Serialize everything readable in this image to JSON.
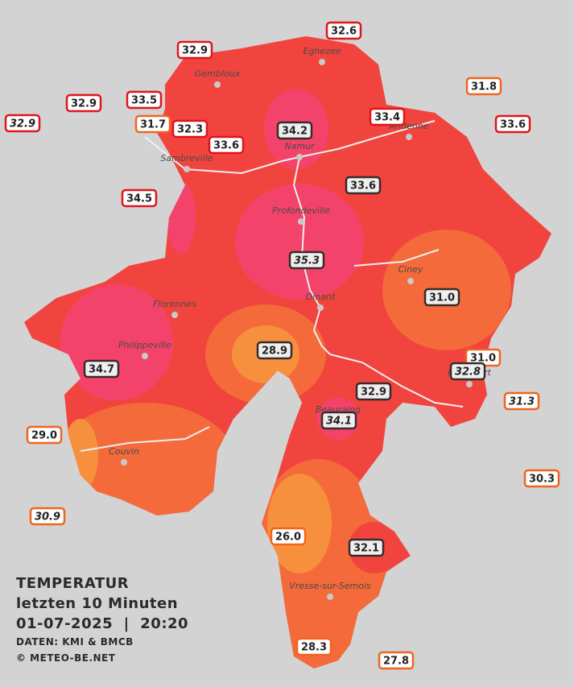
{
  "title": {
    "lines": [
      "TEMPERATUR",
      "letzten 10 Minuten",
      "01-07-2025  |  20:20"
    ],
    "source": "DATEN: KMI & BMCB",
    "copyright": "© METEO-BE.NET"
  },
  "places": [
    "Eghezee",
    "Gembloux",
    "Andenne",
    "Namur",
    "Sambreville",
    "Profondeville",
    "Ciney",
    "Dinant",
    "Florennes",
    "Philippeville",
    "Rochefort",
    "Beauraing",
    "Couvin",
    "Vresse-sur-Semois"
  ],
  "stations": [
    "32.6",
    "32.9",
    "32.9",
    "33.5",
    "31.7",
    "32.3",
    "33.6",
    "34.2",
    "33.4",
    "31.8",
    "33.6",
    "32.9",
    "34.5",
    "33.6",
    "35.3",
    "31.0",
    "28.9",
    "31.0",
    "32.8",
    "34.7",
    "32.9",
    "31.3",
    "34.1",
    "29.0",
    "30.3",
    "30.9",
    "26.0",
    "32.1",
    "28.3",
    "27.8"
  ]
}
